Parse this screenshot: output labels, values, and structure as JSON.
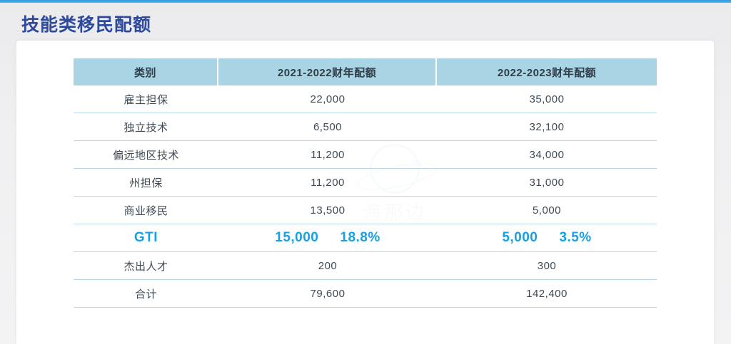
{
  "colors": {
    "title": "#2e4a9c",
    "top-bar": "#3aa0e2",
    "header-bg": "#a9d4e4",
    "header-text": "#2f3e49",
    "row-text": "#3e4a55",
    "row-border": "#b9d9e7",
    "highlight": "#18a0e4",
    "page-bg": "#f0f0f2",
    "card-bg": "#ffffff"
  },
  "page": {
    "title": "技能类移民配额"
  },
  "table": {
    "columns": [
      "类别",
      "2021-2022财年配额",
      "2022-2023财年配额"
    ],
    "rows": [
      {
        "category": "雇主担保",
        "fy2122": "22,000",
        "fy2223": "35,000"
      },
      {
        "category": "独立技术",
        "fy2122": "6,500",
        "fy2223": "32,100"
      },
      {
        "category": "偏远地区技术",
        "fy2122": "11,200",
        "fy2223": "34,000"
      },
      {
        "category": "州担保",
        "fy2122": "11,200",
        "fy2223": "31,000"
      },
      {
        "category": "商业移民",
        "fy2122": "13,500",
        "fy2223": "5,000"
      },
      {
        "category": "GTI",
        "fy2122": "15,000",
        "fy2122_pct": "18.8%",
        "fy2223": "5,000",
        "fy2223_pct": "3.5%"
      },
      {
        "category": "杰出人才",
        "fy2122": "200",
        "fy2223": "300"
      },
      {
        "category": "合计",
        "fy2122": "79,600",
        "fy2223": "142,400"
      }
    ]
  },
  "watermark": {
    "text": "海那边"
  }
}
